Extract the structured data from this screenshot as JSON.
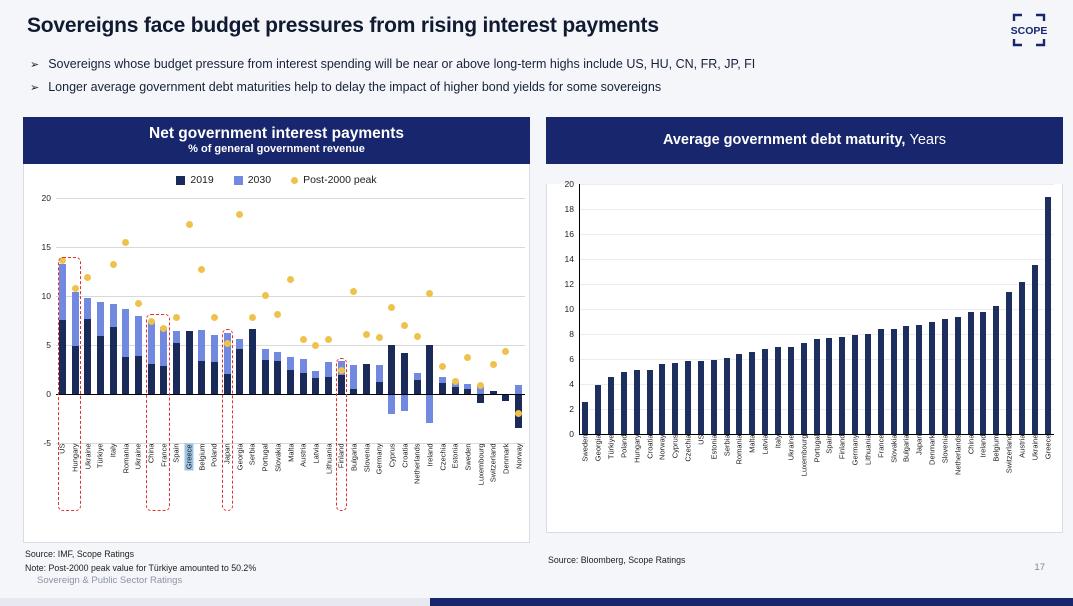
{
  "slide": {
    "title": "Sovereigns face budget pressures from rising interest payments",
    "logo_text": "SCOPE",
    "bullet_marker": "➢",
    "bullets": [
      "Sovereigns whose budget pressure from interest spending will be near or above long-term highs include US, HU, CN, FR, JP, FI",
      "Longer average government debt maturities help to delay the impact of higher bond yields for some sovereigns"
    ],
    "footer": "Sovereign & Public Sector Ratings",
    "page_number": "17"
  },
  "left_chart": {
    "header_title": "Net government interest payments",
    "header_subtitle": "% of general government revenue",
    "legend": [
      {
        "label": "2019",
        "color": "#1b2b59"
      },
      {
        "label": "2030",
        "color": "#7289e0"
      },
      {
        "label": "Post-2000 peak",
        "color": "#eec24d"
      }
    ],
    "source": "Source: IMF, Scope Ratings",
    "note": "Note: Post-2000 peak value for Türkiye amounted to 50.2%"
  },
  "right_chart": {
    "header_title": "Average government debt maturity,",
    "header_unit": "Years",
    "source": "Source: Bloomberg, Scope Ratings"
  },
  "chart_data": [
    {
      "type": "bar",
      "title": "Net government interest payments",
      "subtitle": "% of general government revenue",
      "ylabel": "% of general government revenue",
      "ylim": [
        -5,
        20
      ],
      "yticks": [
        20,
        15,
        10,
        5,
        0,
        -5
      ],
      "legend_position": "top",
      "bar_style": "overlapped (2030 behind, 2019 in front), peak shown as yellow dot",
      "highlighted_category": "Greece",
      "boxed_groups": [
        {
          "from": 0,
          "to": 1,
          "top": 14.0,
          "members": [
            "US",
            "Hungary"
          ]
        },
        {
          "from": 7,
          "to": 8,
          "top": 8.2,
          "members": [
            "China",
            "France"
          ]
        },
        {
          "from": 13,
          "to": 13,
          "top": 6.6,
          "members": [
            "Japan"
          ]
        },
        {
          "from": 22,
          "to": 22,
          "top": 3.7,
          "members": [
            "Finland"
          ]
        }
      ],
      "categories": [
        "US",
        "Hungary",
        "Ukraine",
        "Türkiye",
        "Italy",
        "Romania",
        "Ukraine",
        "China",
        "France",
        "Spain",
        "Greece",
        "Belgium",
        "Poland",
        "Japan",
        "Georgia",
        "Serbia",
        "Portugal",
        "Slovakia",
        "Malta",
        "Austria",
        "Latvia",
        "Lithuania",
        "Finland",
        "Bulgaria",
        "Slovenia",
        "Germany",
        "Cyprus",
        "Croatia",
        "Netherlands",
        "Ireland",
        "Czechia",
        "Estonia",
        "Sweden",
        "Luxembourg",
        "Switzerland",
        "Denmark",
        "Norway"
      ],
      "series": [
        {
          "name": "2019",
          "values": [
            7.6,
            4.9,
            7.7,
            5.9,
            6.8,
            3.8,
            3.9,
            3.1,
            2.9,
            5.2,
            6.4,
            3.4,
            3.3,
            2.0,
            4.6,
            6.6,
            3.5,
            3.4,
            2.4,
            2.1,
            1.6,
            1.7,
            1.9,
            0.5,
            3.1,
            1.2,
            5.0,
            4.2,
            1.4,
            5.0,
            1.1,
            0.7,
            0.5,
            -0.9,
            0.3,
            -0.7,
            -3.5
          ]
        },
        {
          "name": "2030",
          "values": [
            13.3,
            10.4,
            9.8,
            9.4,
            9.2,
            8.7,
            8.0,
            7.5,
            6.8,
            6.4,
            6.2,
            6.5,
            6.0,
            6.2,
            5.6,
            5.5,
            4.6,
            4.3,
            3.8,
            3.6,
            2.3,
            3.3,
            3.4,
            3.0,
            2.6,
            3.0,
            -2.0,
            -1.7,
            2.1,
            -3.0,
            1.7,
            1.1,
            1.0,
            0.8,
            0.2,
            -0.3,
            0.9
          ]
        },
        {
          "name": "Post-2000 peak",
          "marker": "dot",
          "values": [
            13.6,
            10.8,
            11.9,
            null,
            13.2,
            15.5,
            9.2,
            7.4,
            6.7,
            7.8,
            17.3,
            12.7,
            7.8,
            5.2,
            18.3,
            7.8,
            10.1,
            8.1,
            11.7,
            5.6,
            4.9,
            5.6,
            2.4,
            10.5,
            6.1,
            5.8,
            8.8,
            7.0,
            5.9,
            10.3,
            2.8,
            1.3,
            3.7,
            0.9,
            3.0,
            4.3,
            -2.0
          ]
        }
      ]
    },
    {
      "type": "bar",
      "title": "Average government debt maturity",
      "unit": "Years",
      "ylim": [
        0,
        20
      ],
      "yticks": [
        20,
        18,
        16,
        14,
        12,
        10,
        8,
        6,
        4,
        2,
        0
      ],
      "categories": [
        "Sweden",
        "Georgia",
        "Türkiye",
        "Poland",
        "Hungary",
        "Croatia",
        "Norway",
        "Cyprus",
        "Czechia",
        "US",
        "Estonia",
        "Serbia",
        "Romania",
        "Malta",
        "Latvia",
        "Italy",
        "Ukraine",
        "Luxembourg",
        "Portugal",
        "Spain",
        "Finland",
        "Germany",
        "Lithuania",
        "France",
        "Slovakia",
        "Bulgaria",
        "Japan",
        "Denmark",
        "Slovenia",
        "Netherlands",
        "China",
        "Ireland",
        "Belgium",
        "Switzerland",
        "Austria",
        "Ukraine",
        "Greece"
      ],
      "values": [
        2.6,
        3.9,
        4.6,
        5.0,
        5.1,
        5.1,
        5.6,
        5.7,
        5.85,
        5.85,
        5.9,
        6.1,
        6.4,
        6.6,
        6.8,
        7.0,
        7.0,
        7.3,
        7.6,
        7.65,
        7.8,
        7.9,
        8.0,
        8.4,
        8.4,
        8.65,
        8.7,
        9.0,
        9.2,
        9.35,
        9.8,
        9.8,
        10.25,
        11.35,
        12.2,
        13.5,
        19.0
      ]
    }
  ]
}
